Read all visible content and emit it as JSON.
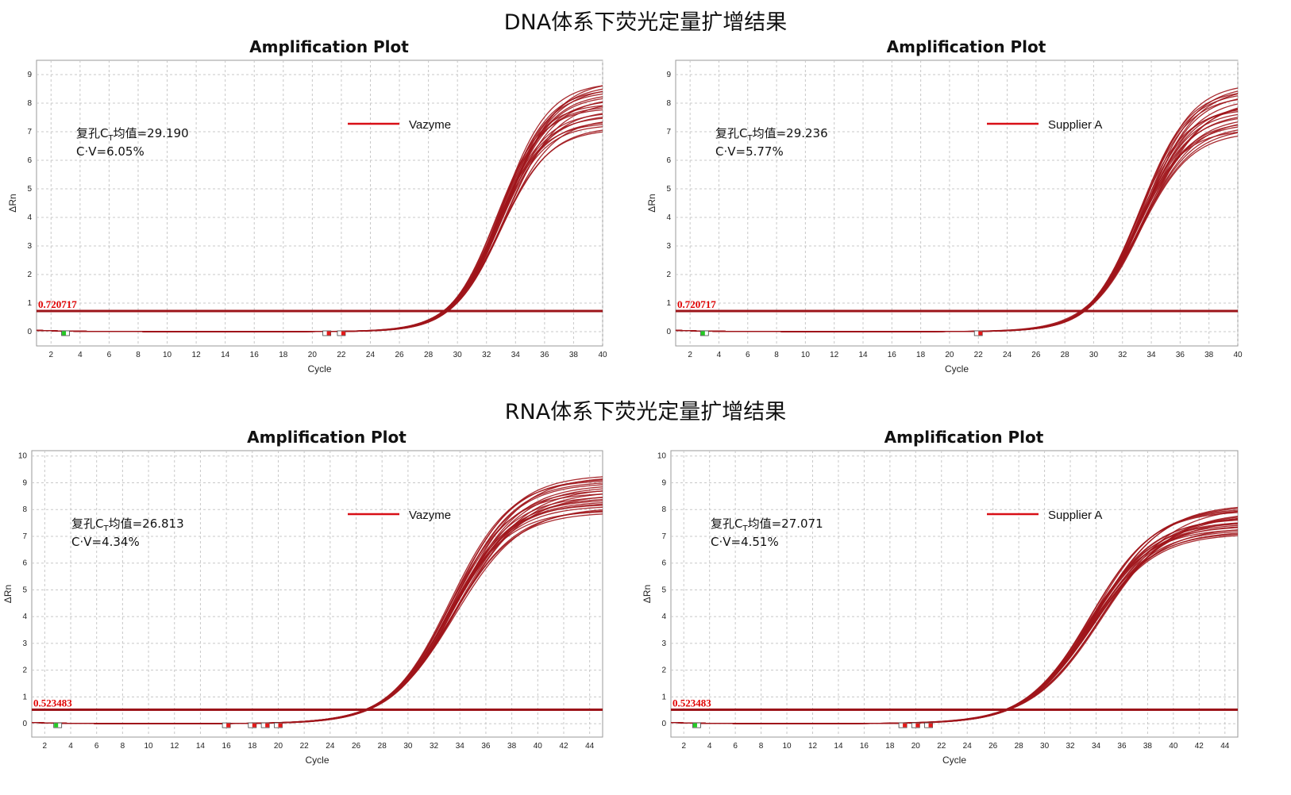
{
  "sections": [
    {
      "title": "DNA体系下荧光定量扩增结果"
    },
    {
      "title": "RNA体系下荧光定量扩增结果"
    }
  ],
  "colors": {
    "curve": "#a0151b",
    "threshold": "#9c1419",
    "legend_line": "#d80f16",
    "threshold_label": "#e00000",
    "grid": "#c8c8c8",
    "marker_red": "#e41a1a",
    "marker_green": "#22cc22"
  },
  "chart_data": [
    {
      "type": "line",
      "title": "Amplification Plot",
      "xlabel": "Cycle",
      "ylabel": "ΔRn",
      "xlim": [
        1,
        40
      ],
      "ylim": [
        -0.5,
        9.5
      ],
      "xticks": [
        2,
        4,
        6,
        8,
        10,
        12,
        14,
        16,
        18,
        20,
        22,
        24,
        26,
        28,
        30,
        32,
        34,
        36,
        38,
        40
      ],
      "yticks": [
        0,
        1,
        2,
        3,
        4,
        5,
        6,
        7,
        8,
        9
      ],
      "grid": true,
      "legend": {
        "label": "Vazyme",
        "position": "top-center"
      },
      "annotation": {
        "ct_prefix": "复孔C",
        "ct_sub": "T",
        "ct_suffix": "均值=29.190",
        "cv": "C·V=6.05%"
      },
      "threshold": {
        "value": 0.720717,
        "label": "0.720717"
      },
      "curve_family": {
        "count": 24,
        "ct_mean": 29.19,
        "plateau_min": 7.1,
        "plateau_max": 8.8,
        "slope_min": 1.55,
        "slope_max": 1.75
      },
      "markers": [
        {
          "cycle": 3,
          "color": "green"
        },
        {
          "cycle": 21,
          "color": "red"
        },
        {
          "cycle": 22,
          "color": "red"
        }
      ]
    },
    {
      "type": "line",
      "title": "Amplification Plot",
      "xlabel": "Cycle",
      "ylabel": "ΔRn",
      "xlim": [
        1,
        40
      ],
      "ylim": [
        -0.5,
        9.5
      ],
      "xticks": [
        2,
        4,
        6,
        8,
        10,
        12,
        14,
        16,
        18,
        20,
        22,
        24,
        26,
        28,
        30,
        32,
        34,
        36,
        38,
        40
      ],
      "yticks": [
        0,
        1,
        2,
        3,
        4,
        5,
        6,
        7,
        8,
        9
      ],
      "grid": true,
      "legend": {
        "label": "Supplier A",
        "position": "top-center"
      },
      "annotation": {
        "ct_prefix": "复孔C",
        "ct_sub": "T",
        "ct_suffix": "均值=29.236",
        "cv": "C·V=5.77%"
      },
      "threshold": {
        "value": 0.720717,
        "label": "0.720717"
      },
      "curve_family": {
        "count": 24,
        "ct_mean": 29.236,
        "plateau_min": 7.0,
        "plateau_max": 8.7,
        "slope_min": 1.65,
        "slope_max": 1.9
      },
      "markers": [
        {
          "cycle": 3,
          "color": "green"
        },
        {
          "cycle": 22,
          "color": "red"
        }
      ]
    },
    {
      "type": "line",
      "title": "Amplification Plot",
      "xlabel": "Cycle",
      "ylabel": "ΔRn",
      "xlim": [
        1,
        45
      ],
      "ylim": [
        -0.5,
        10.2
      ],
      "xticks": [
        2,
        4,
        6,
        8,
        10,
        12,
        14,
        16,
        18,
        20,
        22,
        24,
        26,
        28,
        30,
        32,
        34,
        36,
        38,
        40,
        42,
        44
      ],
      "yticks": [
        0,
        1,
        2,
        3,
        4,
        5,
        6,
        7,
        8,
        9,
        10
      ],
      "grid": true,
      "legend": {
        "label": "Vazyme",
        "position": "top-center"
      },
      "annotation": {
        "ct_prefix": "复孔C",
        "ct_sub": "T",
        "ct_suffix": "均值=26.813",
        "cv": "C·V=4.34%"
      },
      "threshold": {
        "value": 0.523483,
        "label": "0.523483"
      },
      "curve_family": {
        "count": 24,
        "ct_mean": 26.813,
        "plateau_min": 7.9,
        "plateau_max": 9.3,
        "slope_min": 2.3,
        "slope_max": 2.6
      },
      "markers": [
        {
          "cycle": 3,
          "color": "green"
        },
        {
          "cycle": 16,
          "color": "red"
        },
        {
          "cycle": 18,
          "color": "red"
        },
        {
          "cycle": 19,
          "color": "red"
        },
        {
          "cycle": 20,
          "color": "red"
        }
      ]
    },
    {
      "type": "line",
      "title": "Amplification Plot",
      "xlabel": "Cycle",
      "ylabel": "ΔRn",
      "xlim": [
        1,
        45
      ],
      "ylim": [
        -0.5,
        10.2
      ],
      "xticks": [
        2,
        4,
        6,
        8,
        10,
        12,
        14,
        16,
        18,
        20,
        22,
        24,
        26,
        28,
        30,
        32,
        34,
        36,
        38,
        40,
        42,
        44
      ],
      "yticks": [
        0,
        1,
        2,
        3,
        4,
        5,
        6,
        7,
        8,
        9,
        10
      ],
      "grid": true,
      "legend": {
        "label": "Supplier A",
        "position": "top-center"
      },
      "annotation": {
        "ct_prefix": "复孔C",
        "ct_sub": "T",
        "ct_suffix": "均值=27.071",
        "cv": "C·V=4.51%"
      },
      "threshold": {
        "value": 0.523483,
        "label": "0.523483"
      },
      "curve_family": {
        "count": 24,
        "ct_mean": 27.071,
        "plateau_min": 7.1,
        "plateau_max": 8.2,
        "slope_min": 2.4,
        "slope_max": 2.75
      },
      "markers": [
        {
          "cycle": 3,
          "color": "green"
        },
        {
          "cycle": 19,
          "color": "red"
        },
        {
          "cycle": 20,
          "color": "red"
        },
        {
          "cycle": 21,
          "color": "red"
        }
      ]
    }
  ]
}
